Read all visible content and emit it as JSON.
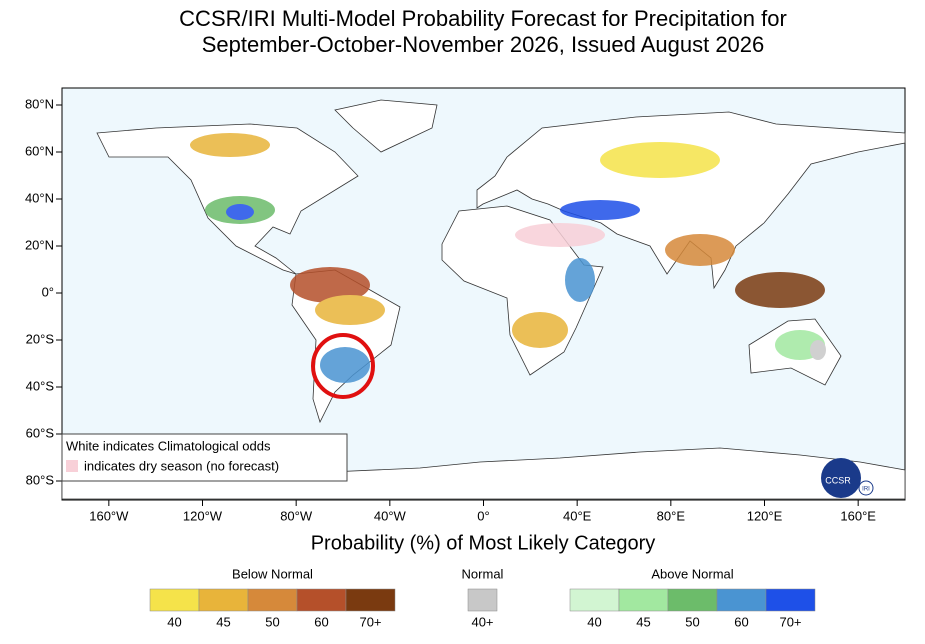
{
  "title": [
    "CCSR/IRI Multi-Model Probability Forecast for Precipitation for",
    "September-October-November 2026, Issued August 2026"
  ],
  "map": {
    "lat_labels": [
      "80°N",
      "60°N",
      "40°N",
      "20°N",
      "0°",
      "20°S",
      "40°S",
      "60°S",
      "80°S"
    ],
    "lon_labels": [
      "160°W",
      "120°W",
      "80°W",
      "40°W",
      "0°",
      "40°E",
      "80°E",
      "120°E",
      "160°E"
    ],
    "note": [
      "White indicates Climatological odds",
      "indicates dry season (no forecast)"
    ],
    "logo": [
      "CCSR",
      "IRI"
    ]
  },
  "xlabel": "Probability (%) of Most Likely Category",
  "legend": [
    {
      "name": "Below Normal",
      "bins": [
        {
          "label": "40",
          "color": "#f5e34a"
        },
        {
          "label": "45",
          "color": "#e8b43a"
        },
        {
          "label": "50",
          "color": "#d6893a"
        },
        {
          "label": "60",
          "color": "#b5502a"
        },
        {
          "label": "70+",
          "color": "#7a3a10"
        }
      ]
    },
    {
      "name": "Normal",
      "bins": [
        {
          "label": "40+",
          "color": "#c8c8c8"
        }
      ]
    },
    {
      "name": "Above Normal",
      "bins": [
        {
          "label": "40",
          "color": "#d2f5d2"
        },
        {
          "label": "45",
          "color": "#a2e8a0"
        },
        {
          "label": "50",
          "color": "#6cbc6a"
        },
        {
          "label": "60",
          "color": "#4a94d2"
        },
        {
          "label": "70+",
          "color": "#1e50e8"
        }
      ]
    }
  ]
}
